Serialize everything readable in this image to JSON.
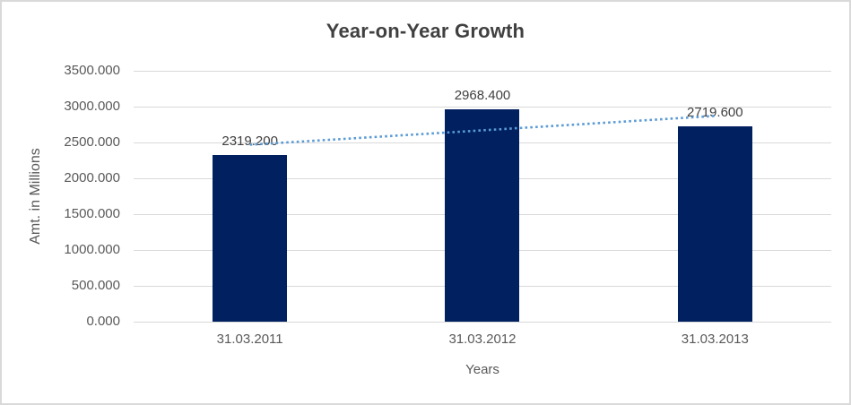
{
  "chart_data": {
    "type": "bar",
    "title": "Year-on-Year Growth",
    "xlabel": "Years",
    "ylabel": "Amt. in Millions",
    "categories": [
      "31.03.2011",
      "31.03.2012",
      "31.03.2013"
    ],
    "values": [
      2319.2,
      2968.4,
      2719.6
    ],
    "value_labels": [
      "2319.200",
      "2968.400",
      "2719.600"
    ],
    "ylim": [
      0,
      3500
    ],
    "ytick_step": 500,
    "ytick_labels": [
      "3500.000",
      "3000.000",
      "2500.000",
      "2000.000",
      "1500.000",
      "1000.000",
      "500.000",
      "0.000"
    ],
    "grid": true,
    "legend_position": "none",
    "bar_color": "#002060",
    "gridline_color": "#d9d9d9",
    "text_color": "#595959",
    "title_color": "#404040",
    "trendline": {
      "type": "linear",
      "style": "dotted",
      "color": "#5b9bd5",
      "start_value": 2469.3,
      "end_value": 2869.7
    }
  }
}
